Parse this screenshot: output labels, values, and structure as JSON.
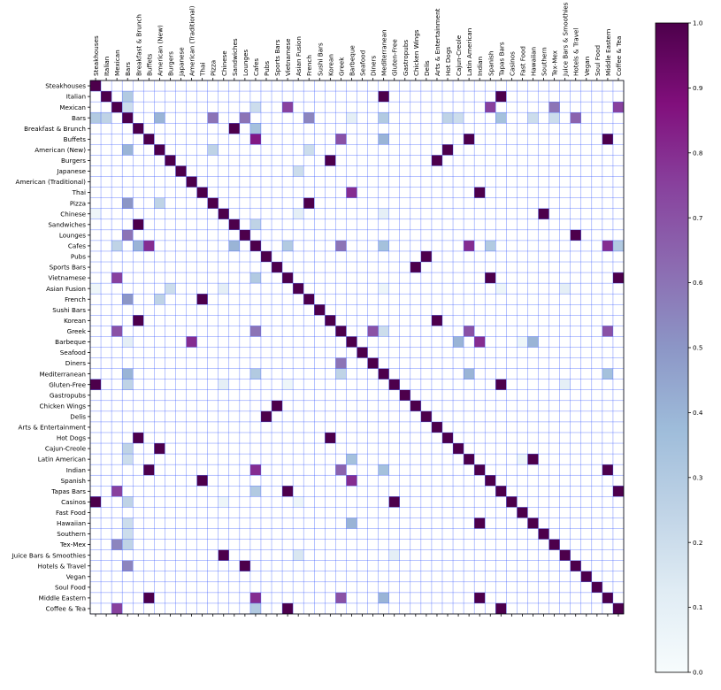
{
  "chart_data": {
    "type": "heatmap",
    "title": "",
    "xlabel": "",
    "ylabel": "",
    "categories": [
      "Steakhouses",
      "Italian",
      "Mexican",
      "Bars",
      "Breakfast & Brunch",
      "Buffets",
      "American (New)",
      "Burgers",
      "Japanese",
      "American (Traditional)",
      "Thai",
      "Pizza",
      "Chinese",
      "Sandwiches",
      "Lounges",
      "Cafes",
      "Pubs",
      "Sports Bars",
      "Vietnamese",
      "Asian Fusion",
      "French",
      "Sushi Bars",
      "Korean",
      "Greek",
      "Barbeque",
      "Seafood",
      "Diners",
      "Mediterranean",
      "Gluten-Free",
      "Gastropubs",
      "Chicken Wings",
      "Delis",
      "Arts & Entertainment",
      "Hot Dogs",
      "Cajun-Creole",
      "Latin American",
      "Indian",
      "Spanish",
      "Tapas Bars",
      "Casinos",
      "Fast Food",
      "Hawaiian",
      "Southern",
      "Tex-Mex",
      "Juice Bars & Smoothies",
      "Hotels & Travel",
      "Vegan",
      "Soul Food",
      "Middle Eastern",
      "Coffee & Tea"
    ],
    "colorbar": {
      "range": [
        0.0,
        1.0
      ],
      "ticks": [
        "0.0",
        "0.1",
        "0.2",
        "0.3",
        "0.4",
        "0.5",
        "0.6",
        "0.7",
        "0.8",
        "0.9",
        "1.0"
      ],
      "colormap": "BuPu",
      "stops": [
        "#f7fcfd",
        "#e0ecf4",
        "#bfd3e6",
        "#9ebcda",
        "#8c96c6",
        "#8c6bb1",
        "#88419d",
        "#810f7c",
        "#4d004b"
      ]
    },
    "grid": true,
    "grid_color": "#3355ff",
    "cells": [
      [
        0,
        0,
        1.0
      ],
      [
        1,
        1,
        1.0
      ],
      [
        1,
        3,
        0.3
      ],
      [
        1,
        27,
        1.0
      ],
      [
        1,
        38,
        1.0
      ],
      [
        2,
        2,
        1.0
      ],
      [
        2,
        3,
        0.2
      ],
      [
        2,
        15,
        0.2
      ],
      [
        2,
        18,
        0.75
      ],
      [
        2,
        37,
        0.75
      ],
      [
        2,
        43,
        0.6
      ],
      [
        2,
        49,
        0.75
      ],
      [
        3,
        0,
        0.3
      ],
      [
        3,
        1,
        0.25
      ],
      [
        3,
        3,
        1.0
      ],
      [
        3,
        6,
        0.4
      ],
      [
        3,
        11,
        0.6
      ],
      [
        3,
        14,
        0.6
      ],
      [
        3,
        20,
        0.55
      ],
      [
        3,
        24,
        0.1
      ],
      [
        3,
        27,
        0.3
      ],
      [
        3,
        33,
        0.25
      ],
      [
        3,
        34,
        0.2
      ],
      [
        3,
        38,
        0.35
      ],
      [
        3,
        41,
        0.2
      ],
      [
        3,
        43,
        0.2
      ],
      [
        3,
        45,
        0.65
      ],
      [
        4,
        4,
        1.0
      ],
      [
        4,
        13,
        1.0
      ],
      [
        4,
        15,
        0.35
      ],
      [
        5,
        5,
        1.0
      ],
      [
        5,
        15,
        0.85
      ],
      [
        5,
        23,
        0.7
      ],
      [
        5,
        27,
        0.4
      ],
      [
        5,
        35,
        1.0
      ],
      [
        5,
        48,
        1.0
      ],
      [
        6,
        3,
        0.4
      ],
      [
        6,
        6,
        1.0
      ],
      [
        6,
        11,
        0.25
      ],
      [
        6,
        20,
        0.2
      ],
      [
        6,
        33,
        1.0
      ],
      [
        7,
        7,
        1.0
      ],
      [
        7,
        22,
        1.0
      ],
      [
        7,
        32,
        1.0
      ],
      [
        8,
        8,
        1.0
      ],
      [
        8,
        19,
        0.2
      ],
      [
        9,
        9,
        1.0
      ],
      [
        10,
        10,
        1.0
      ],
      [
        10,
        24,
        0.8
      ],
      [
        10,
        36,
        1.0
      ],
      [
        11,
        3,
        0.5
      ],
      [
        11,
        6,
        0.25
      ],
      [
        11,
        11,
        1.0
      ],
      [
        11,
        20,
        1.0
      ],
      [
        12,
        0,
        0.05
      ],
      [
        12,
        12,
        1.0
      ],
      [
        12,
        19,
        0.1
      ],
      [
        12,
        27,
        0.1
      ],
      [
        12,
        42,
        1.0
      ],
      [
        13,
        4,
        1.0
      ],
      [
        13,
        13,
        1.0
      ],
      [
        13,
        15,
        0.25
      ],
      [
        14,
        3,
        0.6
      ],
      [
        14,
        14,
        1.0
      ],
      [
        14,
        45,
        1.0
      ],
      [
        15,
        2,
        0.25
      ],
      [
        15,
        4,
        0.4
      ],
      [
        15,
        5,
        0.8
      ],
      [
        15,
        13,
        0.4
      ],
      [
        15,
        15,
        1.0
      ],
      [
        15,
        18,
        0.3
      ],
      [
        15,
        23,
        0.6
      ],
      [
        15,
        27,
        0.35
      ],
      [
        15,
        35,
        0.8
      ],
      [
        15,
        37,
        0.3
      ],
      [
        15,
        48,
        0.8
      ],
      [
        15,
        49,
        0.3
      ],
      [
        16,
        16,
        1.0
      ],
      [
        16,
        31,
        1.0
      ],
      [
        17,
        17,
        1.0
      ],
      [
        17,
        30,
        1.0
      ],
      [
        18,
        2,
        0.75
      ],
      [
        18,
        15,
        0.3
      ],
      [
        18,
        18,
        1.0
      ],
      [
        18,
        37,
        1.0
      ],
      [
        18,
        49,
        1.0
      ],
      [
        19,
        0,
        0.05
      ],
      [
        19,
        7,
        0.2
      ],
      [
        19,
        12,
        0.1
      ],
      [
        19,
        19,
        1.0
      ],
      [
        19,
        27,
        0.05
      ],
      [
        19,
        38,
        0.05
      ],
      [
        19,
        44,
        0.1
      ],
      [
        20,
        3,
        0.5
      ],
      [
        20,
        6,
        0.25
      ],
      [
        20,
        10,
        1.0
      ],
      [
        20,
        20,
        1.0
      ],
      [
        21,
        21,
        1.0
      ],
      [
        22,
        4,
        1.0
      ],
      [
        22,
        22,
        1.0
      ],
      [
        22,
        32,
        1.0
      ],
      [
        23,
        2,
        0.7
      ],
      [
        23,
        15,
        0.6
      ],
      [
        23,
        23,
        1.0
      ],
      [
        23,
        26,
        0.7
      ],
      [
        23,
        27,
        0.2
      ],
      [
        23,
        35,
        0.7
      ],
      [
        23,
        48,
        0.7
      ],
      [
        24,
        3,
        0.1
      ],
      [
        24,
        9,
        0.8
      ],
      [
        24,
        24,
        1.0
      ],
      [
        24,
        34,
        0.4
      ],
      [
        24,
        36,
        0.8
      ],
      [
        24,
        40,
        0.05
      ],
      [
        24,
        41,
        0.4
      ],
      [
        25,
        25,
        1.0
      ],
      [
        26,
        23,
        0.6
      ],
      [
        26,
        26,
        1.0
      ],
      [
        27,
        3,
        0.4
      ],
      [
        27,
        27,
        1.0
      ],
      [
        27,
        35,
        0.4
      ],
      [
        27,
        48,
        0.35
      ],
      [
        27,
        15,
        0.3
      ],
      [
        27,
        23,
        0.25
      ],
      [
        28,
        0,
        1.0
      ],
      [
        28,
        3,
        0.25
      ],
      [
        28,
        12,
        0.1
      ],
      [
        28,
        18,
        0.05
      ],
      [
        28,
        28,
        1.0
      ],
      [
        28,
        38,
        1.0
      ],
      [
        28,
        44,
        0.1
      ],
      [
        29,
        29,
        1.0
      ],
      [
        30,
        17,
        1.0
      ],
      [
        30,
        30,
        1.0
      ],
      [
        31,
        16,
        1.0
      ],
      [
        31,
        31,
        1.0
      ],
      [
        32,
        32,
        1.0
      ],
      [
        33,
        4,
        1.0
      ],
      [
        33,
        22,
        1.0
      ],
      [
        33,
        33,
        1.0
      ],
      [
        34,
        3,
        0.25
      ],
      [
        34,
        6,
        1.0
      ],
      [
        34,
        34,
        1.0
      ],
      [
        35,
        3,
        0.2
      ],
      [
        35,
        24,
        0.35
      ],
      [
        35,
        35,
        1.0
      ],
      [
        35,
        40,
        0.05
      ],
      [
        35,
        41,
        1.0
      ],
      [
        36,
        5,
        1.0
      ],
      [
        36,
        15,
        0.8
      ],
      [
        36,
        23,
        0.65
      ],
      [
        36,
        27,
        0.35
      ],
      [
        36,
        36,
        1.0
      ],
      [
        36,
        48,
        1.0
      ],
      [
        37,
        10,
        1.0
      ],
      [
        37,
        24,
        0.8
      ],
      [
        37,
        37,
        1.0
      ],
      [
        38,
        2,
        0.75
      ],
      [
        38,
        15,
        0.3
      ],
      [
        38,
        18,
        1.0
      ],
      [
        38,
        38,
        1.0
      ],
      [
        38,
        49,
        1.0
      ],
      [
        39,
        0,
        1.0
      ],
      [
        39,
        3,
        0.25
      ],
      [
        39,
        12,
        0.05
      ],
      [
        39,
        19,
        0.05
      ],
      [
        39,
        28,
        1.0
      ],
      [
        39,
        39,
        1.0
      ],
      [
        40,
        40,
        1.0
      ],
      [
        41,
        3,
        0.2
      ],
      [
        41,
        24,
        0.4
      ],
      [
        41,
        36,
        1.0
      ],
      [
        41,
        41,
        1.0
      ],
      [
        42,
        3,
        0.2
      ],
      [
        42,
        42,
        1.0
      ],
      [
        43,
        2,
        0.55
      ],
      [
        43,
        3,
        0.25
      ],
      [
        43,
        43,
        1.0
      ],
      [
        44,
        12,
        1.0
      ],
      [
        44,
        19,
        0.15
      ],
      [
        44,
        28,
        0.1
      ],
      [
        44,
        44,
        1.0
      ],
      [
        45,
        3,
        0.55
      ],
      [
        45,
        14,
        1.0
      ],
      [
        45,
        45,
        1.0
      ],
      [
        46,
        46,
        1.0
      ],
      [
        47,
        47,
        1.0
      ],
      [
        48,
        5,
        1.0
      ],
      [
        48,
        15,
        0.8
      ],
      [
        48,
        23,
        0.7
      ],
      [
        48,
        27,
        0.4
      ],
      [
        48,
        36,
        1.0
      ],
      [
        48,
        48,
        1.0
      ],
      [
        49,
        2,
        0.75
      ],
      [
        49,
        15,
        0.3
      ],
      [
        49,
        18,
        1.0
      ],
      [
        49,
        38,
        1.0
      ],
      [
        49,
        49,
        1.0
      ]
    ]
  }
}
